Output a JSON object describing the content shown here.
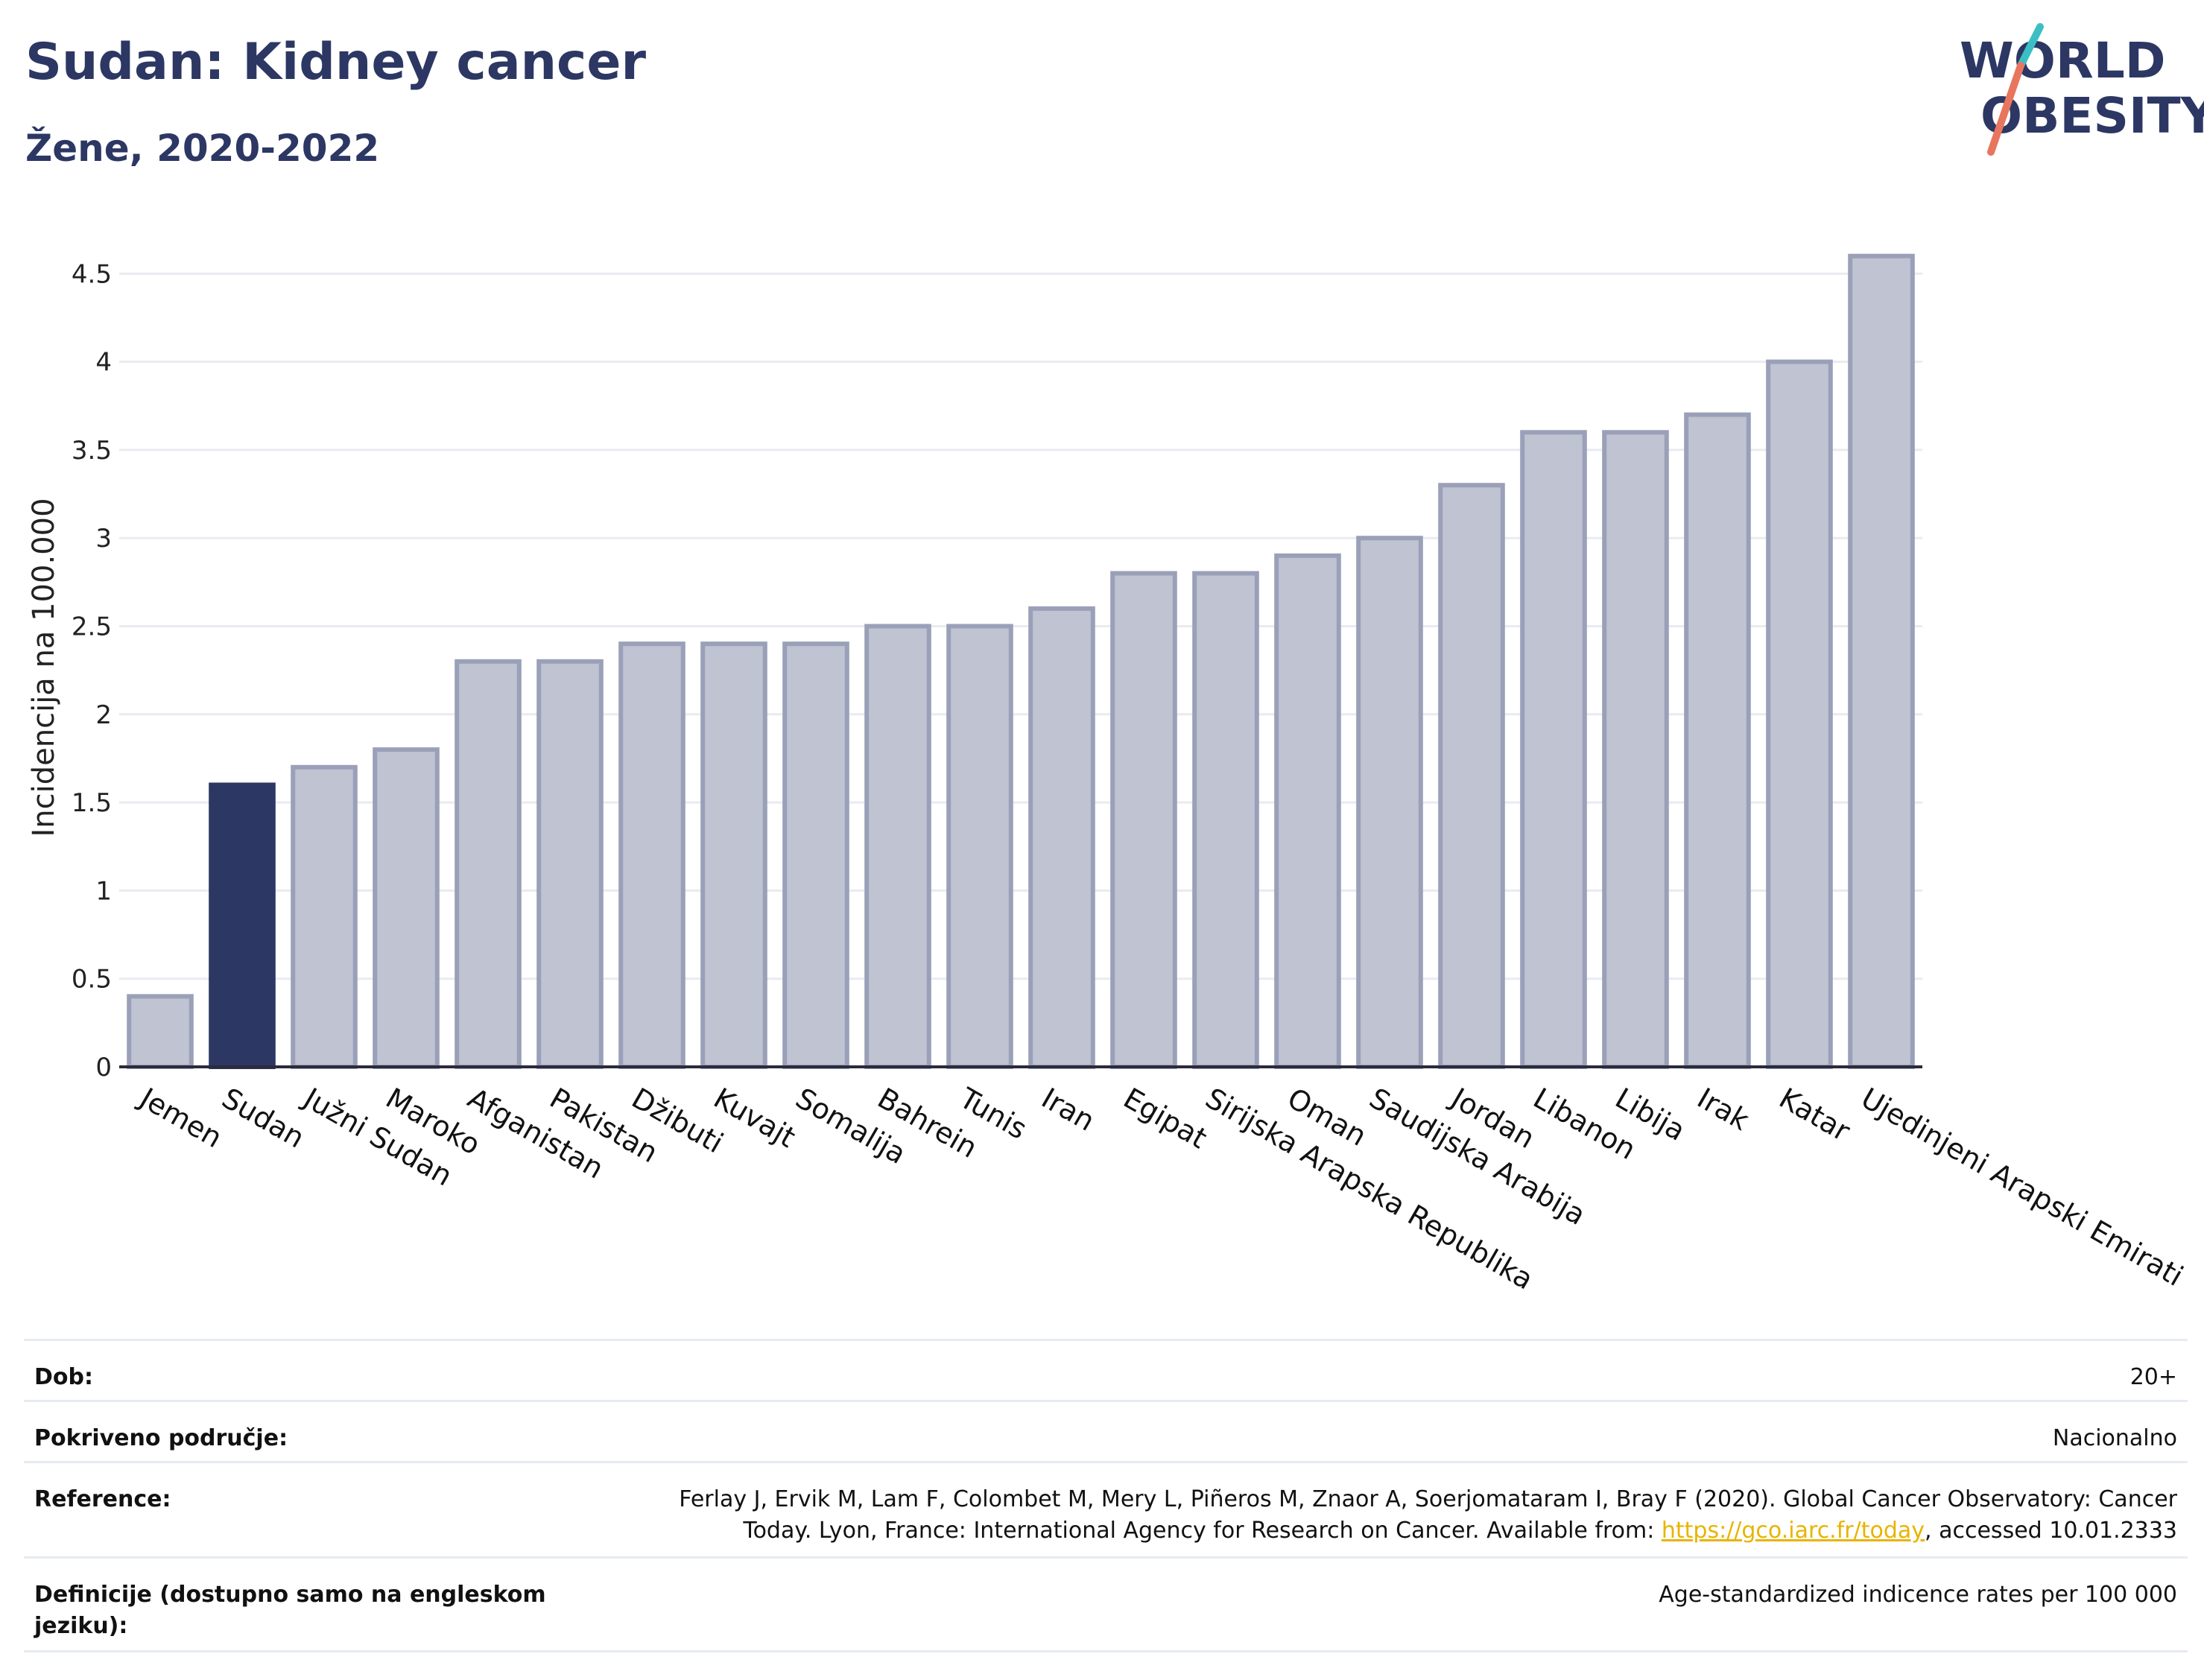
{
  "header": {
    "title": "Sudan: Kidney cancer",
    "subtitle": "Žene, 2020-2022"
  },
  "logo": {
    "line1": "WORLD",
    "line2": "OBESITY",
    "accent_teal": "#3bbfc4",
    "accent_coral": "#e8765e",
    "color": "#2c3763"
  },
  "colors": {
    "bar": "#bfc3d2",
    "bar_border": "#9aa0b8",
    "highlight": "#2c3763",
    "grid": "#e8ebf1",
    "axis": "#2b2b3b"
  },
  "chart_data": {
    "type": "bar",
    "categories": [
      "Jemen",
      "Sudan",
      "Južni Sudan",
      "Maroko",
      "Afganistan",
      "Pakistan",
      "Džibuti",
      "Kuvajt",
      "Somalija",
      "Bahrein",
      "Tunis",
      "Iran",
      "Egipat",
      "Sirijska Arapska Republika",
      "Oman",
      "Saudijska Arabija",
      "Jordan",
      "Libanon",
      "Libija",
      "Irak",
      "Katar",
      "Ujedinjeni Arapski Emirati"
    ],
    "values": [
      0.4,
      1.6,
      1.7,
      1.8,
      2.3,
      2.3,
      2.4,
      2.4,
      2.4,
      2.5,
      2.5,
      2.6,
      2.8,
      2.8,
      2.9,
      3.0,
      3.3,
      3.6,
      3.6,
      3.7,
      4.0,
      4.6
    ],
    "highlight": "Sudan",
    "ylabel": "Incidencija na 100.000",
    "ylim": [
      0,
      4.7
    ],
    "yticks": [
      "0",
      "0.5",
      "1",
      "1.5",
      "2",
      "2.5",
      "3",
      "3.5",
      "4",
      "4.5"
    ],
    "grid": true
  },
  "info": {
    "rows": [
      {
        "label": "Dob:",
        "value": "20+"
      },
      {
        "label": "Pokriveno područje:",
        "value": "Nacionalno"
      },
      {
        "label": "Reference:",
        "value_pre": "Ferlay J, Ervik M, Lam F, Colombet M, Mery L, Piñeros M, Znaor A, Soerjomataram I, Bray F (2020). Global Cancer Observatory: Cancer Today. Lyon, France: International Agency for Research on Cancer. Available from: ",
        "link": "https://gco.iarc.fr/today",
        "value_post": ", accessed 10.01.2333"
      },
      {
        "label": "Definicije (dostupno samo na engleskom jeziku):",
        "value": "Age-standardized indicence rates per 100 000"
      }
    ]
  }
}
